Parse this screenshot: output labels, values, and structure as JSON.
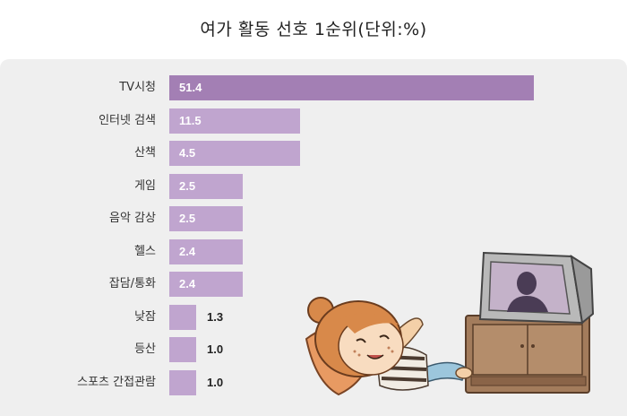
{
  "chart_data": {
    "type": "bar",
    "orientation": "horizontal",
    "title": "여가 활동 선호 1순위(단위:%)",
    "categories": [
      "TV시청",
      "인터넷 검색",
      "산책",
      "게임",
      "음악 감상",
      "헬스",
      "잡담/통화",
      "낮잠",
      "등산",
      "스포츠 간접관람"
    ],
    "values": [
      51.4,
      11.5,
      4.5,
      2.5,
      2.5,
      2.4,
      2.4,
      1.3,
      1.0,
      1.0
    ],
    "value_labels": [
      "51.4",
      "11.5",
      "4.5",
      "2.5",
      "2.5",
      "2.4",
      "2.4",
      "1.3",
      "1.0",
      "1.0"
    ],
    "highlight_index": 0,
    "colors": {
      "highlight": "#a37fb4",
      "bar": "#c0a5cf",
      "label_inside": "#ffffff",
      "label_outside": "#222222",
      "background": "#efefef"
    }
  },
  "illustration": "girl-watching-tv-illustration"
}
